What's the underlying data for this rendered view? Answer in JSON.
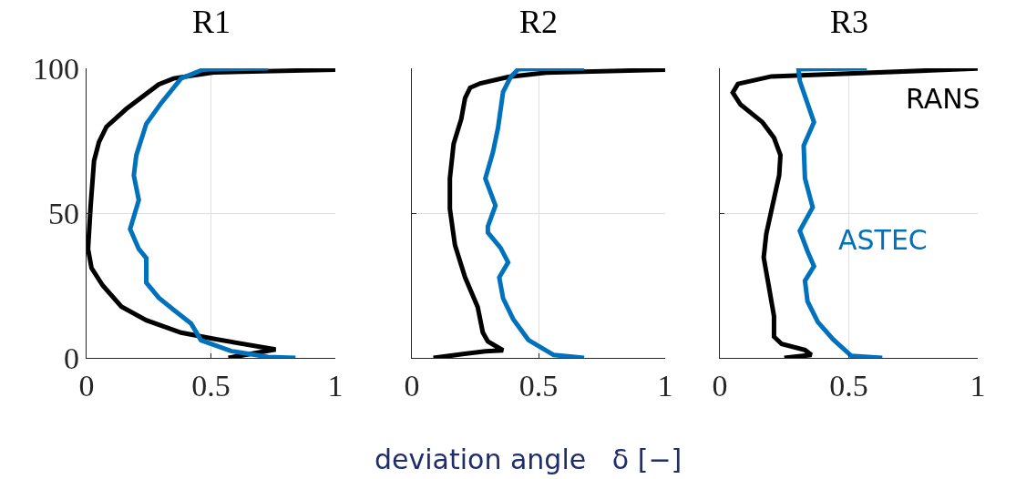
{
  "chart_data": [
    {
      "type": "line",
      "title": "R1",
      "xlim": [
        0,
        1
      ],
      "ylim": [
        0,
        100
      ],
      "xticks": [
        0,
        0.5,
        1
      ],
      "yticks": [
        0,
        50,
        100
      ],
      "grid": true,
      "series": [
        {
          "color": "#000000",
          "x": [
            0.57,
            0.76,
            0.51,
            0.38,
            0.24,
            0.14,
            0.065,
            0.02,
            0.006,
            0.016,
            0.03,
            0.05,
            0.08,
            0.16,
            0.29,
            0.35,
            0.51,
            1.0
          ],
          "values": [
            0,
            2.9,
            6.6,
            8.7,
            13,
            17.7,
            25,
            31,
            37.6,
            52,
            68,
            74.6,
            79.8,
            86,
            94.4,
            96.5,
            98.6,
            99.5
          ]
        },
        {
          "color": "#0072bd",
          "x": [
            0.84,
            0.73,
            0.58,
            0.46,
            0.42,
            0.35,
            0.29,
            0.24,
            0.24,
            0.21,
            0.175,
            0.21,
            0.19,
            0.2,
            0.24,
            0.3,
            0.38,
            0.47,
            0.73
          ],
          "values": [
            0,
            0.3,
            2.4,
            6.1,
            11.9,
            16.6,
            20.8,
            26,
            34.5,
            37.6,
            44.5,
            54.5,
            63,
            70,
            80.8,
            88,
            96.5,
            99.6,
            100
          ]
        }
      ]
    },
    {
      "type": "line",
      "title": "R2",
      "xlabel": "deviation angle   δ [−]",
      "xlim": [
        0,
        1
      ],
      "ylim": [
        0,
        100
      ],
      "xticks": [
        0,
        0.5,
        1
      ],
      "yticks": [
        0,
        50,
        100
      ],
      "grid": true,
      "tick_labels": "x",
      "series": [
        {
          "color": "#000000",
          "x": [
            0.085,
            0.29,
            0.36,
            0.3,
            0.28,
            0.26,
            0.21,
            0.17,
            0.15,
            0.15,
            0.165,
            0.195,
            0.21,
            0.23,
            0.27,
            0.38,
            0.53,
            1.0
          ],
          "values": [
            0,
            2.3,
            2.6,
            5.7,
            8.8,
            17.5,
            27.8,
            39,
            51.5,
            62,
            74,
            82.5,
            89.7,
            93.3,
            94.8,
            97,
            98.5,
            99.5
          ]
        },
        {
          "color": "#0072bd",
          "x": [
            0.68,
            0.56,
            0.46,
            0.4,
            0.36,
            0.345,
            0.38,
            0.35,
            0.3,
            0.3,
            0.33,
            0.29,
            0.32,
            0.34,
            0.36,
            0.39,
            0.42,
            0.68
          ],
          "values": [
            0,
            1,
            6.2,
            13.4,
            20.6,
            27.8,
            33,
            38,
            43.3,
            45.4,
            52.6,
            61.9,
            71,
            79.4,
            91.8,
            97,
            99.7,
            100
          ]
        }
      ]
    },
    {
      "type": "line",
      "title": "R3",
      "xlim": [
        0,
        1
      ],
      "ylim": [
        0,
        100
      ],
      "xticks": [
        0,
        0.5,
        1
      ],
      "yticks": [
        0,
        50,
        100
      ],
      "grid": true,
      "tick_labels": "x",
      "series": [
        {
          "name": "RANS",
          "color": "#000000",
          "x": [
            0.25,
            0.355,
            0.33,
            0.24,
            0.21,
            0.21,
            0.19,
            0.17,
            0.18,
            0.21,
            0.23,
            0.235,
            0.21,
            0.165,
            0.08,
            0.05,
            0.07,
            0.2,
            1.0
          ],
          "values": [
            0,
            1,
            2.7,
            4.8,
            7.3,
            14.4,
            24.6,
            34.7,
            42.8,
            55,
            63,
            70,
            76,
            81.4,
            87.5,
            91.6,
            94.6,
            97.2,
            99.9
          ]
        },
        {
          "name": "ASTEC",
          "color": "#0072bd",
          "x": [
            0.63,
            0.51,
            0.44,
            0.38,
            0.34,
            0.33,
            0.365,
            0.34,
            0.31,
            0.36,
            0.33,
            0.325,
            0.365,
            0.31,
            0.305,
            0.57
          ],
          "values": [
            0,
            0.7,
            6.3,
            12.4,
            19.5,
            26.6,
            31.7,
            36.8,
            43.9,
            52,
            62,
            73.3,
            81.4,
            95.6,
            99.7,
            100
          ]
        }
      ]
    }
  ]
}
